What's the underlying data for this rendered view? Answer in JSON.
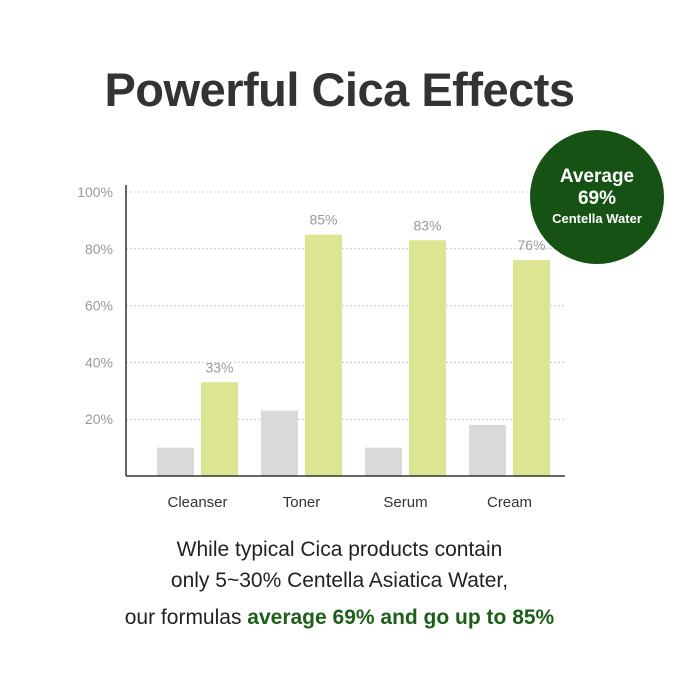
{
  "title": "Powerful Cica Effects",
  "badge": {
    "line1": "Average",
    "line2": "69%",
    "line3": "Centella Water",
    "color": "#165214"
  },
  "caption": {
    "line1": "While typical Cica products contain",
    "line2": "only 5~30% Centella Asiatica Water,",
    "line3_prefix": "our formulas ",
    "line3_highlight": "average 69% and go up to 85%"
  },
  "chart_data": {
    "type": "bar",
    "categories": [
      "Cleanser",
      "Toner",
      "Serum",
      "Cream"
    ],
    "series": [
      {
        "values": [
          10,
          23,
          10,
          18
        ],
        "color": "#d9d9d9"
      },
      {
        "values": [
          33,
          85,
          83,
          76
        ],
        "color": "#dde592",
        "labels": [
          "33%",
          "85%",
          "83%",
          "76%"
        ]
      }
    ],
    "yticks": [
      "20%",
      "40%",
      "60%",
      "80%",
      "100%"
    ],
    "ytick_values": [
      20,
      40,
      60,
      80,
      100
    ],
    "ylim": [
      0,
      100
    ],
    "grid": true
  }
}
